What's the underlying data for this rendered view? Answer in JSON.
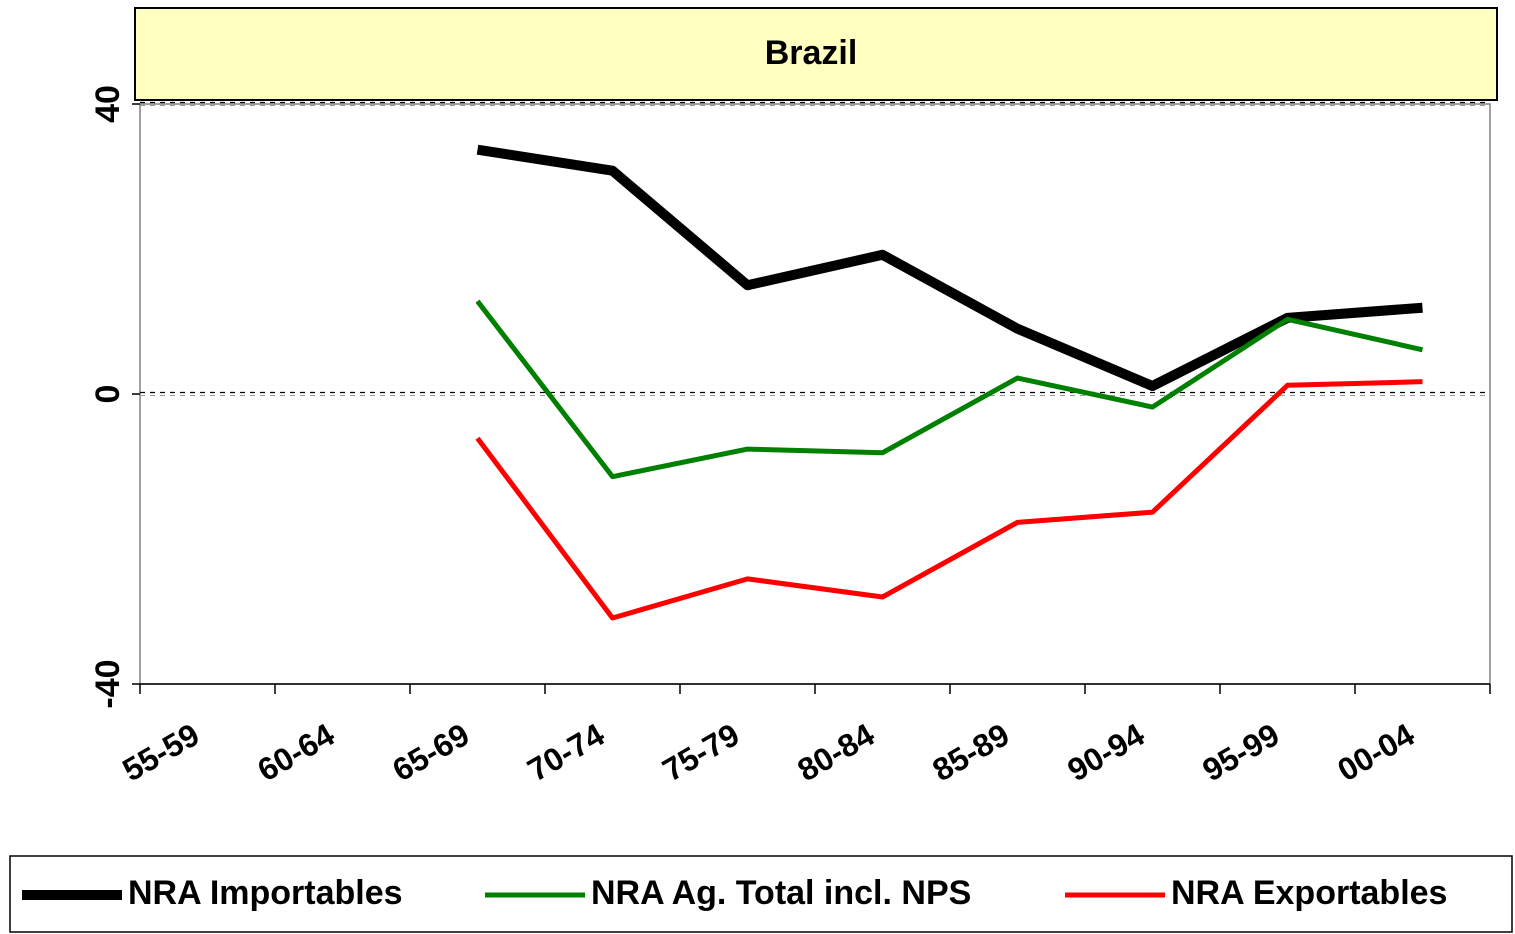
{
  "chart_data": {
    "type": "line",
    "title": "Brazil",
    "categories": [
      "55-59",
      "60-64",
      "65-69",
      "70-74",
      "75-79",
      "80-84",
      "85-89",
      "90-94",
      "95-99",
      "00-04"
    ],
    "series": [
      {
        "name": "NRA Importables",
        "color": "#000000",
        "values": [
          null,
          null,
          33.7,
          30.8,
          15.0,
          19.2,
          9.0,
          1.1,
          10.5,
          11.9
        ]
      },
      {
        "name": "NRA Ag. Total incl. NPS",
        "color": "#008000",
        "values": [
          null,
          null,
          12.8,
          -11.4,
          -7.6,
          -8.1,
          2.2,
          -1.8,
          10.3,
          6.1
        ]
      },
      {
        "name": "NRA Exportables",
        "color": "#ff0000",
        "values": [
          null,
          null,
          -6.1,
          -30.9,
          -25.5,
          -28.0,
          -17.7,
          -16.3,
          1.2,
          1.7
        ]
      }
    ],
    "ylim": [
      -40,
      40
    ],
    "yticks": [
      -40,
      0,
      40
    ],
    "legend": "bottom"
  }
}
